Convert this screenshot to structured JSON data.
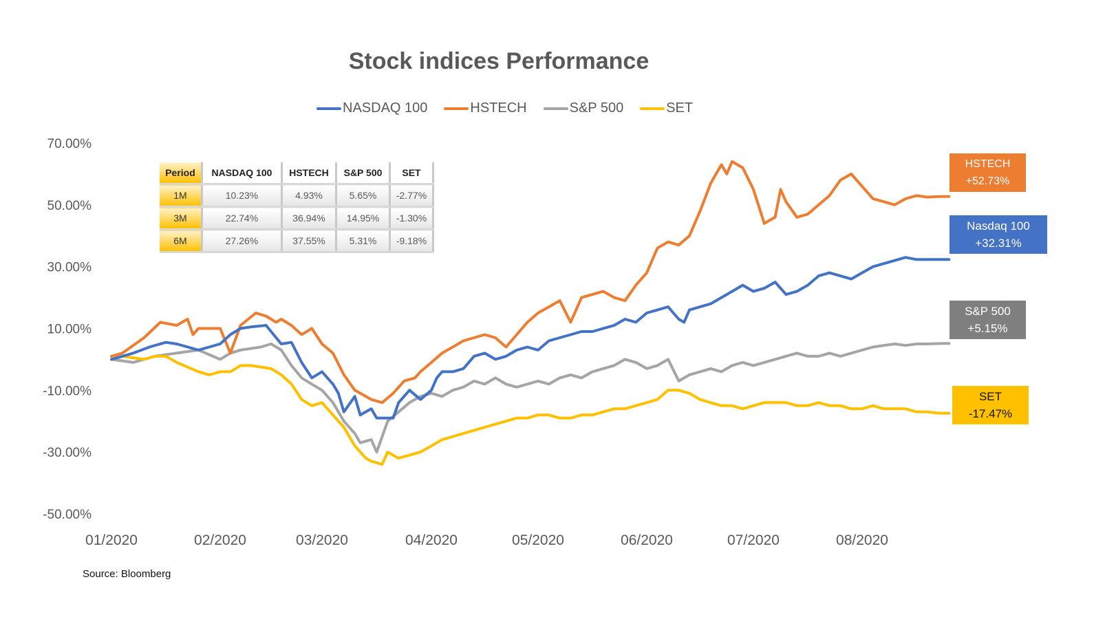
{
  "chart_data": {
    "type": "line",
    "title": "Stock indices Performance",
    "xlabel": "",
    "ylabel": "",
    "ylim": [
      -50,
      70
    ],
    "yticks": [
      "70.00%",
      "50.00%",
      "30.00%",
      "10.00%",
      "-10.00%",
      "-30.00%",
      "-50.00%"
    ],
    "ytick_values": [
      70,
      50,
      30,
      10,
      -10,
      -30,
      -50
    ],
    "xticks": [
      "01/2020",
      "02/2020",
      "03/2020",
      "04/2020",
      "05/2020",
      "06/2020",
      "07/2020",
      "08/2020"
    ],
    "x_unit": "month index (0 = 01/2020)",
    "xlim": [
      0,
      7.8
    ],
    "grid": false,
    "legend_position": "top",
    "series": [
      {
        "name": "NASDAQ 100",
        "color": "#4472C4",
        "x": [
          0,
          0.2,
          0.35,
          0.5,
          0.6,
          0.8,
          0.9,
          1.0,
          1.1,
          1.2,
          1.3,
          1.45,
          1.6,
          1.7,
          1.8,
          1.9,
          2.0,
          2.1,
          2.15,
          2.2,
          2.3,
          2.35,
          2.45,
          2.5,
          2.55,
          2.65,
          2.7,
          2.8,
          2.9,
          3.0,
          3.05,
          3.1,
          3.2,
          3.3,
          3.4,
          3.5,
          3.6,
          3.7,
          3.8,
          3.9,
          4.0,
          4.1,
          4.2,
          4.3,
          4.4,
          4.5,
          4.6,
          4.7,
          4.8,
          4.9,
          5.0,
          5.1,
          5.2,
          5.3,
          5.35,
          5.4,
          5.5,
          5.6,
          5.7,
          5.8,
          5.9,
          6.0,
          6.1,
          6.2,
          6.3,
          6.4,
          6.5,
          6.6,
          6.7,
          6.8,
          6.9,
          7.0,
          7.1,
          7.2,
          7.3,
          7.4,
          7.5,
          7.6,
          7.7,
          7.8
        ],
        "values": [
          0,
          2,
          4,
          5.5,
          5,
          3,
          4,
          5,
          8,
          10,
          10.5,
          11,
          5,
          5.5,
          -1,
          -6,
          -4,
          -8,
          -11,
          -17,
          -12,
          -18,
          -16,
          -19,
          -19,
          -19,
          -14,
          -10,
          -13,
          -10,
          -6,
          -4,
          -4,
          -3,
          1,
          2,
          0,
          1,
          3,
          4,
          3,
          6,
          7,
          8,
          9,
          9,
          10,
          11,
          13,
          12,
          15,
          16,
          17,
          13,
          12,
          16,
          17,
          18,
          20,
          22,
          24,
          22,
          23,
          25,
          21,
          22,
          24,
          27,
          28,
          27,
          26,
          28,
          30,
          31,
          32,
          33,
          32.3,
          32.3,
          32.31,
          32.31
        ],
        "end_label": "Nasdaq 100",
        "end_value_label": "+32.31%"
      },
      {
        "name": "HSTECH",
        "color": "#ED7D31",
        "x": [
          0,
          0.1,
          0.3,
          0.45,
          0.6,
          0.7,
          0.75,
          0.8,
          1.0,
          1.1,
          1.2,
          1.35,
          1.45,
          1.55,
          1.6,
          1.7,
          1.8,
          1.9,
          2.0,
          2.1,
          2.2,
          2.3,
          2.4,
          2.45,
          2.55,
          2.65,
          2.75,
          2.85,
          2.9,
          3.0,
          3.1,
          3.2,
          3.3,
          3.4,
          3.5,
          3.6,
          3.7,
          3.8,
          3.9,
          4.0,
          4.1,
          4.2,
          4.3,
          4.4,
          4.5,
          4.6,
          4.7,
          4.8,
          4.9,
          5.0,
          5.1,
          5.2,
          5.3,
          5.4,
          5.5,
          5.6,
          5.7,
          5.75,
          5.8,
          5.9,
          6.0,
          6.1,
          6.2,
          6.25,
          6.3,
          6.4,
          6.5,
          6.6,
          6.7,
          6.8,
          6.9,
          7.0,
          7.1,
          7.2,
          7.3,
          7.4,
          7.5,
          7.6,
          7.7,
          7.8
        ],
        "values": [
          1,
          2,
          7,
          12,
          11,
          13,
          8,
          10,
          10,
          2,
          11,
          15,
          14,
          12,
          13,
          11,
          8,
          10,
          5,
          2,
          -5,
          -10,
          -12,
          -13,
          -14,
          -11,
          -7,
          -6,
          -4,
          -1,
          2,
          4,
          6,
          7,
          8,
          7,
          4,
          8,
          12,
          15,
          17,
          19,
          12,
          20,
          21,
          22,
          20,
          19,
          24,
          28,
          36,
          38,
          37,
          40,
          48,
          57,
          63,
          60,
          64,
          62,
          55,
          44,
          46,
          55,
          51,
          46,
          47,
          50,
          53,
          58,
          60,
          56,
          52,
          51,
          50,
          52,
          53,
          52.5,
          52.7,
          52.73
        ],
        "end_label": "HSTECH",
        "end_value_label": "+52.73%"
      },
      {
        "name": "S&P 500",
        "color": "#A5A5A5",
        "x": [
          0,
          0.2,
          0.4,
          0.6,
          0.8,
          1.0,
          1.1,
          1.2,
          1.4,
          1.5,
          1.6,
          1.7,
          1.8,
          1.9,
          2.0,
          2.1,
          2.2,
          2.3,
          2.35,
          2.45,
          2.5,
          2.6,
          2.7,
          2.8,
          2.9,
          3.0,
          3.1,
          3.2,
          3.3,
          3.4,
          3.5,
          3.6,
          3.7,
          3.8,
          3.9,
          4.0,
          4.1,
          4.2,
          4.3,
          4.4,
          4.5,
          4.6,
          4.7,
          4.8,
          4.9,
          5.0,
          5.1,
          5.2,
          5.3,
          5.4,
          5.5,
          5.6,
          5.7,
          5.8,
          5.9,
          6.0,
          6.1,
          6.2,
          6.3,
          6.4,
          6.5,
          6.6,
          6.7,
          6.8,
          6.9,
          7.0,
          7.1,
          7.2,
          7.3,
          7.4,
          7.5,
          7.6,
          7.7,
          7.8
        ],
        "values": [
          0,
          -1,
          1,
          2,
          3,
          0,
          2,
          3,
          4,
          5,
          3,
          -2,
          -6,
          -8,
          -10,
          -14,
          -20,
          -24,
          -27,
          -26,
          -30,
          -20,
          -17,
          -14,
          -12,
          -11,
          -12,
          -10,
          -9,
          -7,
          -8,
          -6,
          -8,
          -9,
          -8,
          -7,
          -8,
          -6,
          -5,
          -6,
          -4,
          -3,
          -2,
          0,
          -1,
          -3,
          -2,
          0,
          -7,
          -5,
          -4,
          -3,
          -4,
          -2,
          -1,
          -2,
          -1,
          0,
          1,
          2,
          1,
          1,
          2,
          1,
          2,
          3,
          4,
          4.5,
          5,
          4.5,
          5,
          5,
          5.1,
          5.15
        ],
        "end_label": "S&P 500",
        "end_value_label": "+5.15%"
      },
      {
        "name": "SET",
        "color": "#FFC000",
        "x": [
          0,
          0.1,
          0.3,
          0.4,
          0.5,
          0.6,
          0.8,
          0.9,
          1.0,
          1.1,
          1.2,
          1.3,
          1.5,
          1.6,
          1.7,
          1.8,
          1.9,
          2.0,
          2.1,
          2.2,
          2.3,
          2.4,
          2.45,
          2.55,
          2.6,
          2.7,
          2.8,
          2.9,
          3.0,
          3.1,
          3.2,
          3.3,
          3.4,
          3.5,
          3.6,
          3.7,
          3.8,
          3.9,
          4.0,
          4.1,
          4.2,
          4.3,
          4.4,
          4.5,
          4.6,
          4.7,
          4.8,
          4.9,
          5.0,
          5.1,
          5.2,
          5.3,
          5.4,
          5.5,
          5.6,
          5.7,
          5.8,
          5.9,
          6.0,
          6.1,
          6.2,
          6.3,
          6.4,
          6.5,
          6.6,
          6.7,
          6.8,
          6.9,
          7.0,
          7.1,
          7.2,
          7.3,
          7.4,
          7.5,
          7.6,
          7.7,
          7.8
        ],
        "values": [
          0,
          1,
          0,
          1,
          1,
          -1,
          -4,
          -5,
          -4,
          -4,
          -2,
          -2,
          -3,
          -5,
          -8,
          -13,
          -15,
          -14,
          -18,
          -22,
          -28,
          -32,
          -33,
          -34,
          -30,
          -32,
          -31,
          -30,
          -28,
          -26,
          -25,
          -24,
          -23,
          -22,
          -21,
          -20,
          -19,
          -19,
          -18,
          -18,
          -19,
          -19,
          -18,
          -18,
          -17,
          -16,
          -16,
          -15,
          -14,
          -13,
          -10,
          -10,
          -11,
          -13,
          -14,
          -15,
          -15,
          -16,
          -15,
          -14,
          -14,
          -14,
          -15,
          -15,
          -14,
          -15,
          -15,
          -16,
          -16,
          -15,
          -16,
          -16,
          -16,
          -17,
          -17,
          -17.4,
          -17.47
        ],
        "end_label": "SET",
        "end_value_label": "-17.47%"
      }
    ],
    "annotations": [
      {
        "label": "HSTECH",
        "value": "+52.73%",
        "color": "#ED7D31"
      },
      {
        "label": "Nasdaq 100",
        "value": "+32.31%",
        "color": "#4472C4"
      },
      {
        "label": "S&P 500",
        "value": "+5.15%",
        "color": "#7F7F7F"
      },
      {
        "label": "SET",
        "value": "-17.47%",
        "color": "#FFC000"
      }
    ],
    "source": "Source: Bloomberg"
  },
  "table": {
    "headers": [
      "Period",
      "NASDAQ 100",
      "HSTECH",
      "S&P 500",
      "SET"
    ],
    "rows": [
      [
        "1M",
        "10.23%",
        "4.93%",
        "5.65%",
        "-2.77%"
      ],
      [
        "3M",
        "22.74%",
        "36.94%",
        "14.95%",
        "-1.30%"
      ],
      [
        "6M",
        "27.26%",
        "37.55%",
        "5.31%",
        "-9.18%"
      ]
    ]
  }
}
